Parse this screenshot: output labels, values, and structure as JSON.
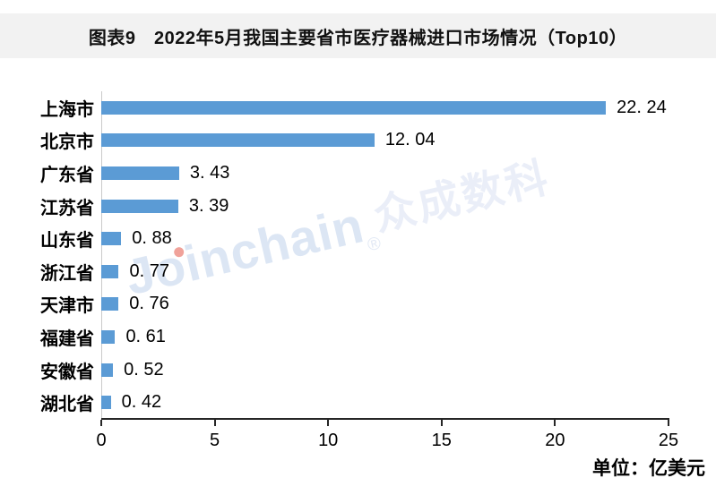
{
  "header": {
    "title": "图表9　2022年5月我国主要省市医疗器械进口市场情况（Top10）"
  },
  "watermark": {
    "brand": "Joinchain",
    "registered_mark": "®",
    "cjk": "众成数科"
  },
  "footer": {
    "unit_note": "单位：亿美元"
  },
  "colors": {
    "bar": "#5B9BD5",
    "title_band_bg": "#F2F2F2",
    "axis_line": "#262626",
    "category_baseline": "#C9C9C9",
    "watermark_brand": "#DCE6F4",
    "watermark_cjk": "#EAEEF8",
    "watermark_dot": "#F0A29A",
    "text": "#000000"
  },
  "chart_data": {
    "type": "bar",
    "orientation": "horizontal",
    "title": "图表9　2022年5月我国主要省市医疗器械进口市场情况（Top10）",
    "categories": [
      "上海市",
      "北京市",
      "广东省",
      "江苏省",
      "山东省",
      "浙江省",
      "天津市",
      "福建省",
      "安徽省",
      "湖北省"
    ],
    "values": [
      22.24,
      12.04,
      3.43,
      3.39,
      0.88,
      0.77,
      0.76,
      0.61,
      0.52,
      0.42
    ],
    "value_labels": [
      "22. 24",
      "12. 04",
      "3. 43",
      "3. 39",
      "0. 88",
      "0. 77",
      "0. 76",
      "0. 61",
      "0. 52",
      "0. 42"
    ],
    "xlabel": "单位：亿美元",
    "xlim": [
      0,
      25
    ],
    "xticks": [
      0,
      5,
      10,
      15,
      20,
      25
    ],
    "grid": false,
    "legend": false,
    "bar_color": "#5B9BD5"
  }
}
